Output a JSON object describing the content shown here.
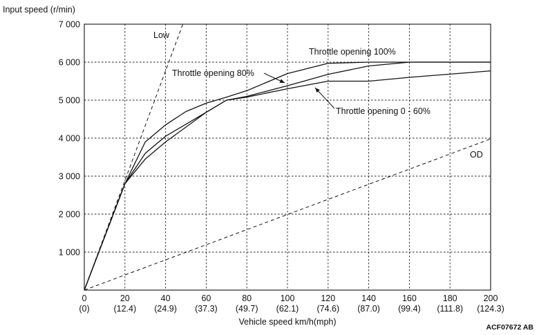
{
  "chart_data": {
    "type": "line",
    "ylabel": "Input speed (r/min)",
    "xlabel": "Vehicle speed  km/h(mph)",
    "figure_code": "ACF07672 AB",
    "xlim": [
      0,
      200
    ],
    "ylim": [
      0,
      7000
    ],
    "grid": true,
    "x_ticks": [
      0,
      20,
      40,
      60,
      80,
      100,
      120,
      140,
      160,
      180,
      200
    ],
    "x_tick_labels_mph": [
      "(0)",
      "(12.4)",
      "(24.9)",
      "(37.3)",
      "(49.7)",
      "(62.1)",
      "(74.6)",
      "(87.0)",
      "(99.4)",
      "(111.8)",
      "(124.3)"
    ],
    "y_ticks": [
      1000,
      2000,
      3000,
      4000,
      5000,
      6000,
      7000
    ],
    "y_tick_labels": [
      "1 000",
      "2 000",
      "3 000",
      "4 000",
      "5 000",
      "6 000",
      "7 000"
    ],
    "series": [
      {
        "name": "Throttle opening 100%",
        "style": "solid",
        "x": [
          0,
          20,
          30,
          40,
          50,
          60,
          70,
          80,
          100,
          120,
          140,
          160,
          200
        ],
        "y": [
          0,
          2800,
          3900,
          4350,
          4700,
          4920,
          5080,
          5250,
          5700,
          5970,
          6000,
          6000,
          6000
        ]
      },
      {
        "name": "Throttle opening 80%",
        "style": "solid",
        "x": [
          0,
          20,
          30,
          40,
          60,
          70,
          80,
          100,
          120,
          140,
          160,
          200
        ],
        "y": [
          0,
          2800,
          3600,
          4050,
          4680,
          5000,
          5100,
          5380,
          5680,
          5900,
          6000,
          6000
        ]
      },
      {
        "name": "Throttle opening 0 - 60%",
        "style": "solid",
        "x": [
          0,
          20,
          30,
          40,
          60,
          70,
          80,
          100,
          120,
          140,
          160,
          200
        ],
        "y": [
          0,
          2800,
          3450,
          3900,
          4680,
          5000,
          5080,
          5300,
          5500,
          5500,
          5600,
          5770
        ]
      },
      {
        "name": "Low",
        "style": "dashed",
        "x": [
          0,
          48.5
        ],
        "y": [
          0,
          7000
        ]
      },
      {
        "name": "OD",
        "style": "dashed",
        "x": [
          0,
          200
        ],
        "y": [
          0,
          3980
        ]
      }
    ],
    "annotations": [
      {
        "text": "Low"
      },
      {
        "text": "OD"
      },
      {
        "text": "Throttle opening 100%"
      },
      {
        "text": "Throttle opening 80%"
      },
      {
        "text": "Throttle opening 0 - 60%"
      }
    ]
  }
}
